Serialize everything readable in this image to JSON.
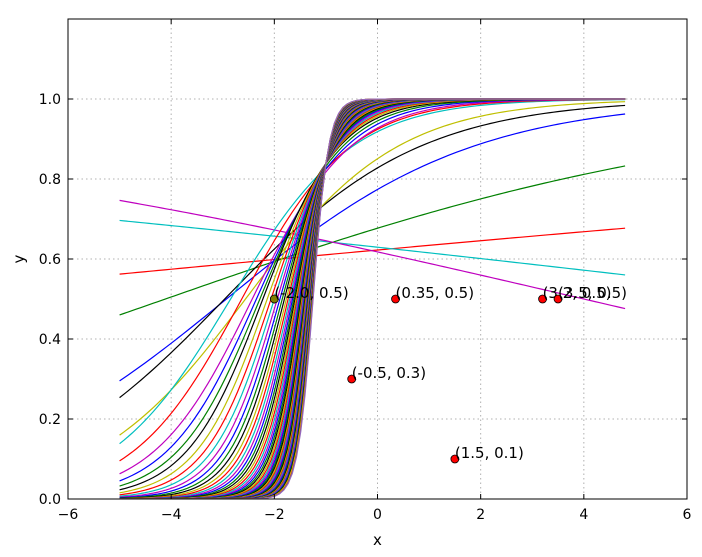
{
  "chart_data": {
    "type": "line",
    "xlabel": "x",
    "ylabel": "y",
    "xlim": [
      -6,
      6
    ],
    "ylim": [
      0,
      1.2
    ],
    "xticks": [
      -6,
      -4,
      -2,
      0,
      2,
      4,
      6
    ],
    "yticks": [
      0.0,
      0.2,
      0.4,
      0.6,
      0.8,
      1.0
    ],
    "grid": true,
    "curve_x_range": [
      -5,
      4.8
    ],
    "curve_function": "sigmoid(w*x + b)",
    "series": [
      {
        "w": 0.05,
        "b": 0.5,
        "color": "#ff0000"
      },
      {
        "w": -0.06,
        "b": 0.53,
        "color": "#00bfbf"
      },
      {
        "w": 0.18,
        "b": 0.74,
        "color": "#008000"
      },
      {
        "w": -0.12,
        "b": 0.48,
        "color": "#bf00bf"
      },
      {
        "w": 0.42,
        "b": 1.23,
        "color": "#0000ff"
      },
      {
        "w": 0.53,
        "b": 1.57,
        "color": "#000000"
      },
      {
        "w": 0.68,
        "b": 1.74,
        "color": "#bfbf00"
      },
      {
        "w": 0.85,
        "b": 2.42,
        "color": "#00bfbf"
      },
      {
        "w": 0.95,
        "b": 2.5,
        "color": "#ff0000"
      },
      {
        "w": 1.05,
        "b": 2.55,
        "color": "#bf00bf"
      },
      {
        "w": 1.15,
        "b": 2.7,
        "color": "#0000ff"
      },
      {
        "w": 1.25,
        "b": 2.85,
        "color": "#008000"
      },
      {
        "w": 1.35,
        "b": 3.0,
        "color": "#000000"
      },
      {
        "w": 1.45,
        "b": 3.1,
        "color": "#bfbf00"
      },
      {
        "w": 1.55,
        "b": 3.2,
        "color": "#ff0000"
      },
      {
        "w": 1.65,
        "b": 3.3,
        "color": "#00bfbf"
      },
      {
        "w": 1.75,
        "b": 3.4,
        "color": "#bf00bf"
      },
      {
        "w": 1.85,
        "b": 3.5,
        "color": "#0000ff"
      },
      {
        "w": 1.95,
        "b": 3.6,
        "color": "#008000"
      },
      {
        "w": 2.05,
        "b": 3.7,
        "color": "#000000"
      },
      {
        "w": 2.15,
        "b": 3.8,
        "color": "#bfbf00"
      },
      {
        "w": 2.25,
        "b": 3.9,
        "color": "#ff0000"
      },
      {
        "w": 2.35,
        "b": 4.0,
        "color": "#00bfbf"
      },
      {
        "w": 2.45,
        "b": 4.1,
        "color": "#bf00bf"
      },
      {
        "w": 2.55,
        "b": 4.2,
        "color": "#0000ff"
      },
      {
        "w": 2.65,
        "b": 4.3,
        "color": "#008000"
      },
      {
        "w": 2.75,
        "b": 4.4,
        "color": "#000000"
      },
      {
        "w": 2.85,
        "b": 4.5,
        "color": "#bfbf00"
      },
      {
        "w": 2.95,
        "b": 4.6,
        "color": "#ff0000"
      },
      {
        "w": 3.05,
        "b": 4.7,
        "color": "#00bfbf"
      },
      {
        "w": 3.15,
        "b": 4.8,
        "color": "#bf00bf"
      },
      {
        "w": 3.25,
        "b": 4.9,
        "color": "#0000ff"
      },
      {
        "w": 3.35,
        "b": 5.0,
        "color": "#008000"
      },
      {
        "w": 3.45,
        "b": 5.1,
        "color": "#000000"
      },
      {
        "w": 3.55,
        "b": 5.2,
        "color": "#bfbf00"
      },
      {
        "w": 3.65,
        "b": 5.3,
        "color": "#ff0000"
      },
      {
        "w": 3.75,
        "b": 5.4,
        "color": "#00bfbf"
      },
      {
        "w": 3.85,
        "b": 5.5,
        "color": "#bf00bf"
      },
      {
        "w": 3.95,
        "b": 5.6,
        "color": "#0000ff"
      },
      {
        "w": 4.05,
        "b": 5.7,
        "color": "#008000"
      },
      {
        "w": 4.15,
        "b": 5.8,
        "color": "#000000"
      },
      {
        "w": 4.25,
        "b": 5.9,
        "color": "#bfbf00"
      },
      {
        "w": 4.35,
        "b": 6.0,
        "color": "#ff0000"
      },
      {
        "w": 4.45,
        "b": 6.1,
        "color": "#00bfbf"
      },
      {
        "w": 4.55,
        "b": 6.2,
        "color": "#bf00bf"
      },
      {
        "w": 4.65,
        "b": 6.3,
        "color": "#0000ff"
      },
      {
        "w": 4.75,
        "b": 6.4,
        "color": "#008000"
      },
      {
        "w": 4.85,
        "b": 6.5,
        "color": "#000000"
      },
      {
        "w": 4.95,
        "b": 6.6,
        "color": "#bfbf00"
      },
      {
        "w": 5.05,
        "b": 6.7,
        "color": "#ff0000"
      },
      {
        "w": 5.15,
        "b": 6.8,
        "color": "#00bfbf"
      },
      {
        "w": 5.25,
        "b": 6.9,
        "color": "#bf00bf"
      },
      {
        "w": 5.35,
        "b": 7.0,
        "color": "#0000ff"
      },
      {
        "w": 5.45,
        "b": 7.1,
        "color": "#008000"
      },
      {
        "w": 5.55,
        "b": 7.2,
        "color": "#000000"
      },
      {
        "w": 5.65,
        "b": 7.3,
        "color": "#bfbf00"
      },
      {
        "w": 5.75,
        "b": 7.4,
        "color": "#ff0000"
      },
      {
        "w": 5.85,
        "b": 7.5,
        "color": "#00bfbf"
      },
      {
        "w": 5.95,
        "b": 7.6,
        "color": "#bf00bf"
      },
      {
        "w": 6.05,
        "b": 7.7,
        "color": "#0000ff"
      },
      {
        "w": 6.15,
        "b": 7.8,
        "color": "#008000"
      },
      {
        "w": 6.25,
        "b": 7.9,
        "color": "#000000"
      },
      {
        "w": 6.35,
        "b": 8.0,
        "color": "#bfbf00"
      },
      {
        "w": 6.45,
        "b": 8.1,
        "color": "#ff7f0e"
      },
      {
        "w": 6.55,
        "b": 8.2,
        "color": "#8c564b"
      },
      {
        "w": 6.65,
        "b": 8.3,
        "color": "#9467bd"
      }
    ],
    "points": [
      {
        "x": -2.0,
        "y": 0.5,
        "label": "(-2.0, 0.5)",
        "color": "#808000"
      },
      {
        "x": 0.35,
        "y": 0.5,
        "label": "(0.35, 0.5)",
        "color": "#ff0000"
      },
      {
        "x": 3.2,
        "y": 0.5,
        "label": "(3.2, 0.5)",
        "color": "#ff0000"
      },
      {
        "x": 3.5,
        "y": 0.5,
        "label": "(3.5, 0.5)",
        "color": "#ff0000"
      },
      {
        "x": -0.5,
        "y": 0.3,
        "label": "(-0.5, 0.3)",
        "color": "#ff0000"
      },
      {
        "x": 1.5,
        "y": 0.1,
        "label": "(1.5, 0.1)",
        "color": "#ff0000"
      }
    ]
  }
}
